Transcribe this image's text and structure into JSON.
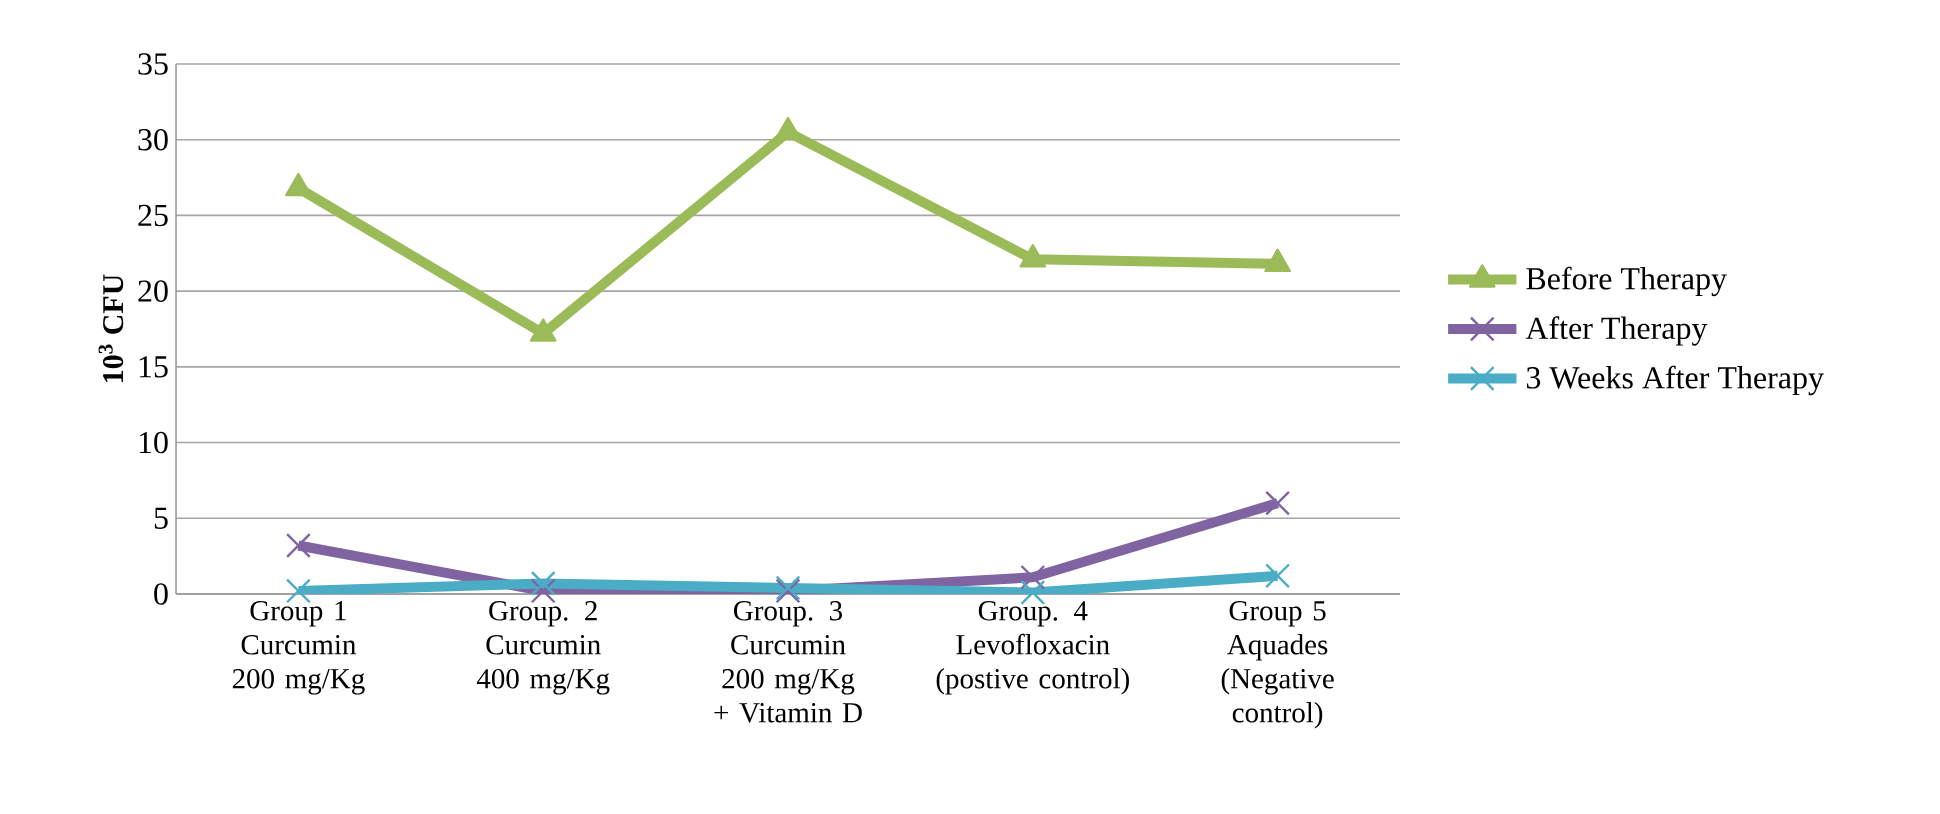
{
  "chart_data": {
    "type": "line",
    "ylabel": "10$^{3}$ CFU",
    "categories": [
      "Group 1 Curcumin 200 mg/Kg",
      "Group. 2 Curcumin 400 mg/Kg",
      "Group. 3 Curcumin 200 mg/Kg + Vitamin D",
      "Group. 4 Levofloxacin (postive control)",
      "Group 5 Aquades (Negative control)"
    ],
    "series": [
      {
        "name": "Before Therapy",
        "color": "#9bbb59",
        "marker": "triangle",
        "values": [
          26.8,
          17.2,
          30.5,
          22.1,
          21.8
        ]
      },
      {
        "name": "After Therapy",
        "color": "#8064a2",
        "marker": "cross",
        "values": [
          3.2,
          0.2,
          0.2,
          1.1,
          6.0
        ]
      },
      {
        "name": "3 Weeks After Therapy",
        "color": "#4bacc6",
        "marker": "cross",
        "values": [
          0.2,
          0.7,
          0.4,
          0.1,
          1.2
        ]
      }
    ],
    "ylim": [
      0,
      35
    ],
    "yticks": [
      0,
      5,
      10,
      15,
      20,
      25,
      30,
      35
    ],
    "grid": "y",
    "legend": "right"
  }
}
